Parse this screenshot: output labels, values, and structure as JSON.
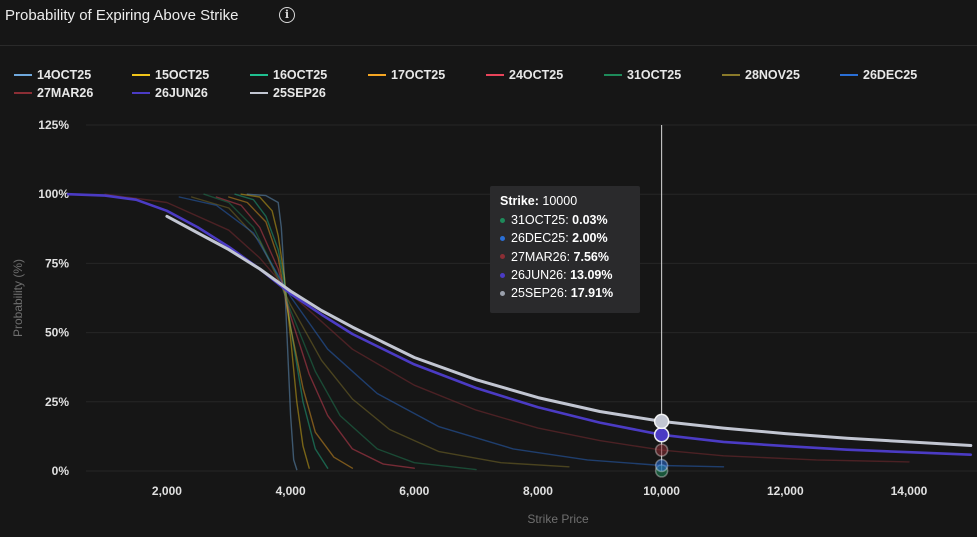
{
  "header": {
    "title": "Probability of Expiring Above Strike",
    "info_icon": "info-circle-icon"
  },
  "legend": [
    {
      "name": "14OCT25",
      "color": "#6fa8dc"
    },
    {
      "name": "15OCT25",
      "color": "#f0c419"
    },
    {
      "name": "16OCT25",
      "color": "#1fbf8f"
    },
    {
      "name": "17OCT25",
      "color": "#f5a623"
    },
    {
      "name": "24OCT25",
      "color": "#e8445a"
    },
    {
      "name": "31OCT25",
      "color": "#1e8a5a"
    },
    {
      "name": "28NOV25",
      "color": "#8a7a2a"
    },
    {
      "name": "26DEC25",
      "color": "#2a6fd6"
    },
    {
      "name": "27MAR26",
      "color": "#8b2e35"
    },
    {
      "name": "26JUN26",
      "color": "#4b3bc4"
    },
    {
      "name": "25SEP26",
      "color": "#c2c6d2"
    }
  ],
  "tooltip": {
    "strike_label": "Strike:",
    "strike_value": "10000",
    "rows": [
      {
        "label": "31OCT25:",
        "value": "0.03%",
        "color": "#1e8a5a"
      },
      {
        "label": "26DEC25:",
        "value": "2.00%",
        "color": "#2a6fd6"
      },
      {
        "label": "27MAR26:",
        "value": "7.56%",
        "color": "#8b2e35"
      },
      {
        "label": "26JUN26:",
        "value": "13.09%",
        "color": "#4b3bc4"
      },
      {
        "label": "25SEP26:",
        "value": "17.91%",
        "color": "#9aa0ac"
      }
    ]
  },
  "chart_data": {
    "type": "line",
    "title": "Probability of Expiring Above Strike",
    "xlabel": "Strike Price",
    "ylabel": "Probability (%)",
    "xlim": [
      400,
      15100
    ],
    "ylim": [
      0,
      125
    ],
    "x_ticks": [
      2000,
      4000,
      6000,
      8000,
      10000,
      12000,
      14000
    ],
    "x_tick_labels": [
      "2,000",
      "4,000",
      "6,000",
      "8,000",
      "10,000",
      "12,000",
      "14,000"
    ],
    "y_ticks": [
      0,
      25,
      50,
      75,
      100,
      125
    ],
    "y_tick_labels": [
      "0%",
      "25%",
      "50%",
      "75%",
      "100%",
      "125%"
    ],
    "hover_x": 10000,
    "series": [
      {
        "name": "14OCT25",
        "x": [
          3300,
          3600,
          3800,
          3850,
          3900,
          3950,
          4000,
          4050,
          4100
        ],
        "values": [
          100,
          99.5,
          97,
          88,
          70,
          45,
          20,
          4,
          0.5
        ]
      },
      {
        "name": "15OCT25",
        "x": [
          3200,
          3500,
          3700,
          3800,
          3900,
          4000,
          4100,
          4200,
          4300
        ],
        "values": [
          100,
          99,
          94,
          85,
          70,
          48,
          25,
          9,
          1
        ]
      },
      {
        "name": "16OCT25",
        "x": [
          3100,
          3400,
          3600,
          3800,
          3900,
          4000,
          4200,
          4400,
          4600
        ],
        "values": [
          100,
          98,
          92,
          80,
          68,
          52,
          25,
          8,
          1
        ]
      },
      {
        "name": "17OCT25",
        "x": [
          3000,
          3300,
          3600,
          3800,
          4000,
          4200,
          4400,
          4700,
          5000
        ],
        "values": [
          99,
          97,
          90,
          77,
          52,
          30,
          14,
          5,
          1
        ]
      },
      {
        "name": "24OCT25",
        "x": [
          2800,
          3200,
          3500,
          3800,
          4000,
          4300,
          4600,
          5000,
          5500,
          6000
        ],
        "values": [
          99,
          96,
          88,
          73,
          56,
          35,
          20,
          8,
          2.5,
          1
        ]
      },
      {
        "name": "31OCT25",
        "x": [
          2600,
          3000,
          3400,
          3800,
          4000,
          4400,
          4800,
          5400,
          6000,
          7000
        ],
        "values": [
          100,
          97,
          88,
          70,
          58,
          36,
          20,
          8,
          3,
          0.5
        ]
      },
      {
        "name": "28NOV25",
        "x": [
          2400,
          3000,
          3500,
          4000,
          4500,
          5000,
          5600,
          6400,
          7400,
          8500
        ],
        "values": [
          99,
          95,
          83,
          60,
          40,
          26,
          15,
          7,
          3,
          1.5
        ]
      },
      {
        "name": "26DEC25",
        "x": [
          2200,
          2800,
          3400,
          4000,
          4600,
          5400,
          6400,
          7600,
          8800,
          10000,
          11000
        ],
        "values": [
          99,
          96,
          86,
          63,
          44,
          28,
          16,
          8,
          4,
          2,
          1.5
        ]
      },
      {
        "name": "27MAR26",
        "x": [
          1000,
          2000,
          3000,
          3500,
          4000,
          5000,
          6000,
          7000,
          8000,
          9000,
          10000,
          11000,
          12500,
          14000
        ],
        "values": [
          100,
          97,
          87,
          77,
          64,
          44,
          31,
          22,
          15.5,
          11,
          7.56,
          5.5,
          4,
          3.3
        ]
      },
      {
        "name": "26JUN26",
        "x": [
          400,
          1000,
          1500,
          2000,
          2500,
          3000,
          3500,
          4000,
          4500,
          5000,
          6000,
          7000,
          8000,
          9000,
          10000,
          11000,
          12000,
          13000,
          14000,
          15000
        ],
        "values": [
          100,
          99.5,
          98,
          94,
          88,
          81,
          73,
          64,
          56.5,
          49.5,
          38.5,
          30,
          23,
          17.5,
          13.09,
          10.5,
          9,
          7.7,
          6.8,
          5.9
        ]
      },
      {
        "name": "25SEP26",
        "x": [
          2000,
          2500,
          3000,
          3500,
          4000,
          4500,
          5000,
          6000,
          7000,
          8000,
          9000,
          10000,
          11000,
          12000,
          13000,
          14000,
          15000
        ],
        "values": [
          92,
          86,
          80,
          73,
          65,
          58,
          52,
          41,
          33,
          26.5,
          21.5,
          17.91,
          15.5,
          13.5,
          11.8,
          10.5,
          9.2
        ]
      }
    ]
  }
}
